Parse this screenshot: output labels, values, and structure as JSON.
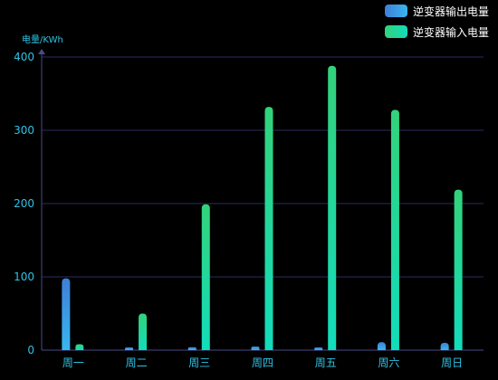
{
  "chart_data": {
    "type": "bar",
    "categories": [
      "周一",
      "周二",
      "周三",
      "周四",
      "周五",
      "周六",
      "周日"
    ],
    "series": [
      {
        "name": "逆变器输出电量",
        "values": [
          98,
          2,
          4,
          5,
          2,
          11,
          10
        ],
        "color_top": "#3f7fd8",
        "color_bottom": "#38b6f0"
      },
      {
        "name": "逆变器输入电量",
        "values": [
          8,
          50,
          199,
          332,
          388,
          328,
          219
        ],
        "color_top": "#33d27a",
        "color_bottom": "#12dcbc"
      }
    ],
    "ylabel": "电量/KWh",
    "xlabel": "",
    "ylim": [
      0,
      400
    ],
    "yticks": [
      0,
      100,
      200,
      300,
      400
    ],
    "grid": true,
    "legend_position": "top-right",
    "colors": {
      "background": "#000000",
      "axis": "#4a4a8a",
      "grid": "#2c2c5e",
      "tick_text": "#2ec3e6",
      "ylabel_text": "#2ec3e6",
      "legend_text": "#ffffff"
    }
  }
}
